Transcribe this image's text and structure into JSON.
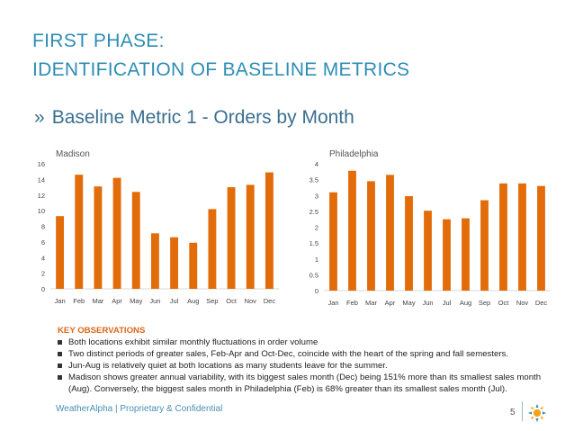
{
  "header": {
    "title_line1": "FIRST PHASE:",
    "title_line2": "IDENTIFICATION OF BASELINE METRICS",
    "subtitle_chevron": "»",
    "subtitle": "Baseline Metric 1 - Orders by Month"
  },
  "colors": {
    "bar": "#e36c0a",
    "axis": "#d9d9d9",
    "tick_text": "#444444",
    "title": "#2e8db5",
    "accent": "#d9671a"
  },
  "chart_data": [
    {
      "type": "bar",
      "title": "Madison",
      "categories": [
        "Jan",
        "Feb",
        "Mar",
        "Apr",
        "May",
        "Jun",
        "Jul",
        "Aug",
        "Sep",
        "Oct",
        "Nov",
        "Dec"
      ],
      "values": [
        9.3,
        14.6,
        13.1,
        14.2,
        12.4,
        7.1,
        6.6,
        5.9,
        10.2,
        13.0,
        13.3,
        14.9
      ],
      "ylim": [
        0,
        16
      ],
      "yticks": [
        "0",
        "2",
        "4",
        "6",
        "8",
        "10",
        "12",
        "14",
        "16"
      ],
      "xlabel": "",
      "ylabel": "",
      "grid": false
    },
    {
      "type": "bar",
      "title": "Philadelphia",
      "categories": [
        "Jan",
        "Feb",
        "Mar",
        "Apr",
        "May",
        "Jun",
        "Jul",
        "Aug",
        "Sep",
        "Oct",
        "Nov",
        "Dec"
      ],
      "values": [
        3.1,
        3.78,
        3.45,
        3.65,
        2.98,
        2.52,
        2.25,
        2.28,
        2.85,
        3.38,
        3.38,
        3.3
      ],
      "ylim": [
        0,
        4
      ],
      "yticks": [
        "0",
        "0.5",
        "1",
        "1.5",
        "2",
        "2.5",
        "3",
        "3.5",
        "4"
      ],
      "xlabel": "",
      "ylabel": "",
      "grid": false
    }
  ],
  "observations": {
    "heading": "KEY OBSERVATIONS",
    "items": [
      "Both locations exhibit similar monthly fluctuations in order volume",
      "Two distinct periods of greater sales, Feb-Apr and Oct-Dec, coincide with the heart of the spring and fall semesters.",
      "Jun-Aug is relatively quiet at both locations as many students leave for the summer.",
      "Madison shows greater annual variability, with its biggest sales month (Dec) being 151%  more than its smallest sales month (Aug).  Conversely, the biggest sales month in Philadelphia (Feb) is 68% greater than its smallest sales month (Jul)."
    ]
  },
  "footer": {
    "text": "WeatherAlpha | Proprietary & Confidential",
    "page": "5"
  }
}
